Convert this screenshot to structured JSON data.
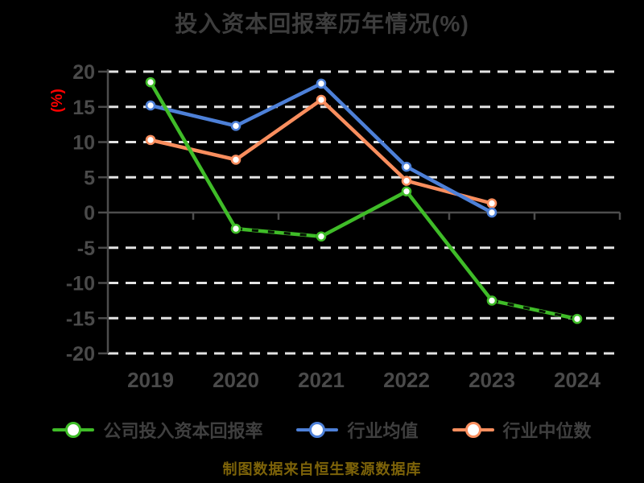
{
  "title": "投入资本回报率历年情况(%)",
  "footer": "制图数据来自恒生聚源数据库",
  "y_axis": {
    "label": "(%)",
    "ticks": [
      20,
      15,
      10,
      5,
      0,
      -5,
      -10,
      -15,
      -20
    ],
    "range": [
      -20,
      20
    ]
  },
  "x_axis": {
    "categories": [
      "2019",
      "2020",
      "2021",
      "2022",
      "2023",
      "2024"
    ]
  },
  "chart_data": {
    "type": "line",
    "categories": [
      "2019",
      "2020",
      "2021",
      "2022",
      "2023",
      "2024"
    ],
    "series": [
      {
        "name": "行业中位数",
        "color": "#f98e5e",
        "values": [
          10.3,
          7.5,
          16.0,
          4.5,
          1.3,
          null
        ],
        "overlay_dash_segments": []
      },
      {
        "name": "行业均值",
        "color": "#4d80d8",
        "values": [
          15.2,
          12.3,
          18.3,
          6.5,
          0.0,
          null
        ],
        "overlay_dash_segments": []
      },
      {
        "name": "公司投入资本回报率",
        "color": "#3fbc28",
        "values": [
          18.5,
          -2.3,
          -3.4,
          3.0,
          -12.5,
          -15.1
        ],
        "overlay_dash_segments": [
          [
            1,
            2
          ],
          [
            4,
            5
          ]
        ]
      }
    ],
    "legend_order": [
      2,
      1,
      0
    ],
    "title": "投入资本回报率历年情况(%)",
    "ylabel": "(%)",
    "ylim": [
      -20,
      20
    ],
    "ytick_step": 5,
    "grid": "horizontal-dashed",
    "legend_position": "bottom"
  },
  "colors": {
    "background": "#000000",
    "title_text": "#3d3d3d",
    "tick_text": "#4a4a4a",
    "legend_text": "#3f3f3f",
    "axis_line": "#4d4d4d",
    "gridline": "#e3e3e3",
    "ylabel_text": "#ff0000",
    "footer_text": "#7d6309",
    "marker_fill": "#ffffff",
    "overlay_dash": "#000000"
  }
}
